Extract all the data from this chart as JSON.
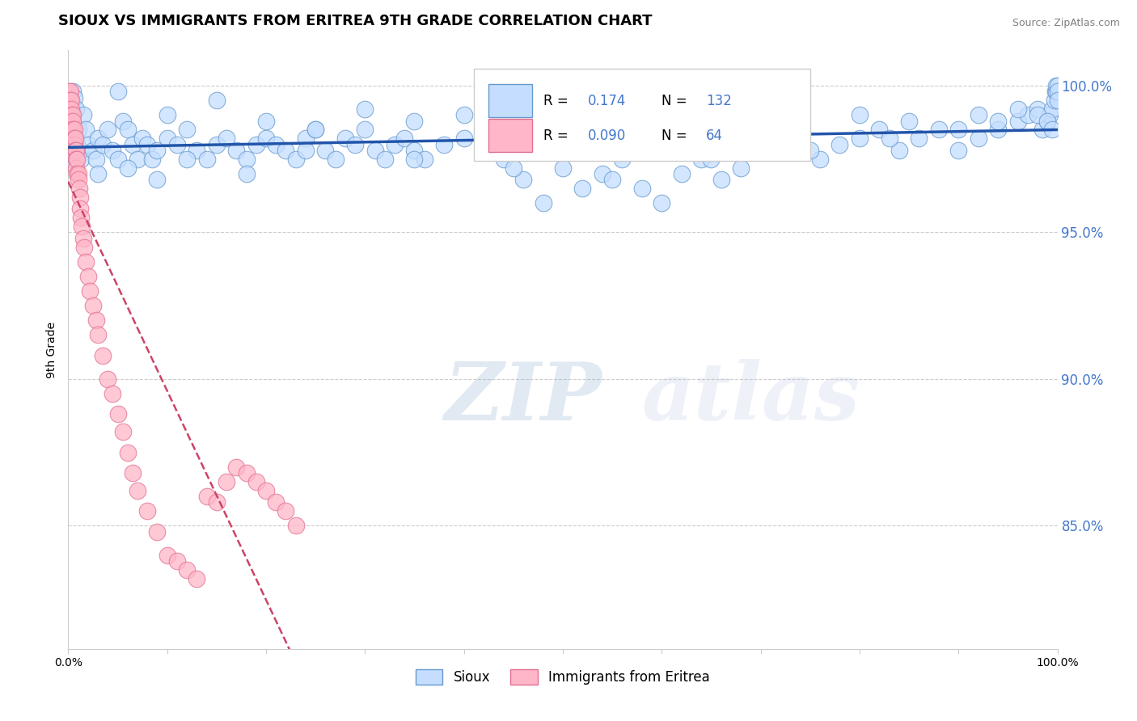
{
  "title": "SIOUX VS IMMIGRANTS FROM ERITREA 9TH GRADE CORRELATION CHART",
  "source": "Source: ZipAtlas.com",
  "ylabel": "9th Grade",
  "legend_label1": "Sioux",
  "legend_label2": "Immigrants from Eritrea",
  "R1": 0.174,
  "N1": 132,
  "R2": 0.09,
  "N2": 64,
  "color_blue_fill": "#C5DEFF",
  "color_blue_edge": "#6699CC",
  "color_pink_fill": "#FFB6C8",
  "color_pink_edge": "#E07090",
  "color_line_blue": "#2255AA",
  "color_line_pink": "#CC4466",
  "watermark_color": "#C8DCF0",
  "grid_color": "#CCCCCC",
  "right_axis_color": "#4477CC",
  "xmin": 0.0,
  "xmax": 1.0,
  "ymin": 0.808,
  "ymax": 1.012,
  "right_yticks": [
    0.85,
    0.9,
    0.95,
    1.0
  ],
  "right_yticklabels": [
    "85.0%",
    "90.0%",
    "95.0%",
    "100.0%"
  ],
  "title_fontsize": 13,
  "axis_label_fontsize": 10,
  "legend_fontsize": 12,
  "watermark_text": "ZIPatlas",
  "blue_x": [
    0.002,
    0.003,
    0.004,
    0.005,
    0.005,
    0.006,
    0.007,
    0.008,
    0.009,
    0.01,
    0.012,
    0.013,
    0.015,
    0.018,
    0.02,
    0.025,
    0.028,
    0.03,
    0.035,
    0.04,
    0.045,
    0.05,
    0.055,
    0.06,
    0.065,
    0.07,
    0.075,
    0.08,
    0.085,
    0.09,
    0.1,
    0.11,
    0.12,
    0.13,
    0.14,
    0.15,
    0.16,
    0.17,
    0.18,
    0.19,
    0.2,
    0.21,
    0.22,
    0.23,
    0.24,
    0.25,
    0.26,
    0.27,
    0.28,
    0.29,
    0.3,
    0.31,
    0.32,
    0.33,
    0.34,
    0.35,
    0.36,
    0.38,
    0.4,
    0.42,
    0.44,
    0.46,
    0.48,
    0.5,
    0.52,
    0.54,
    0.56,
    0.58,
    0.6,
    0.62,
    0.64,
    0.66,
    0.68,
    0.7,
    0.72,
    0.74,
    0.76,
    0.78,
    0.8,
    0.82,
    0.84,
    0.86,
    0.88,
    0.9,
    0.92,
    0.94,
    0.96,
    0.97,
    0.98,
    0.985,
    0.99,
    0.992,
    0.995,
    0.997,
    0.998,
    0.999,
    0.999,
    1.0,
    1.0,
    1.0,
    0.05,
    0.1,
    0.15,
    0.2,
    0.25,
    0.3,
    0.35,
    0.4,
    0.5,
    0.6,
    0.7,
    0.8,
    0.85,
    0.9,
    0.92,
    0.94,
    0.96,
    0.98,
    0.99,
    0.995,
    0.03,
    0.06,
    0.09,
    0.12,
    0.18,
    0.24,
    0.35,
    0.45,
    0.55,
    0.65,
    0.75,
    0.83
  ],
  "blue_y": [
    0.99,
    0.988,
    0.975,
    0.998,
    0.985,
    0.996,
    0.976,
    0.992,
    0.98,
    0.985,
    0.978,
    0.975,
    0.99,
    0.985,
    0.98,
    0.978,
    0.975,
    0.982,
    0.98,
    0.985,
    0.978,
    0.975,
    0.988,
    0.985,
    0.98,
    0.975,
    0.982,
    0.98,
    0.975,
    0.978,
    0.982,
    0.98,
    0.985,
    0.978,
    0.975,
    0.98,
    0.982,
    0.978,
    0.975,
    0.98,
    0.982,
    0.98,
    0.978,
    0.975,
    0.982,
    0.985,
    0.978,
    0.975,
    0.982,
    0.98,
    0.985,
    0.978,
    0.975,
    0.98,
    0.982,
    0.978,
    0.975,
    0.98,
    0.982,
    0.978,
    0.975,
    0.968,
    0.96,
    0.972,
    0.965,
    0.97,
    0.975,
    0.965,
    0.96,
    0.97,
    0.975,
    0.968,
    0.972,
    0.978,
    0.982,
    0.978,
    0.975,
    0.98,
    0.982,
    0.985,
    0.978,
    0.982,
    0.985,
    0.978,
    0.982,
    0.985,
    0.988,
    0.99,
    0.992,
    0.985,
    0.988,
    0.99,
    0.992,
    0.995,
    0.998,
    0.998,
    1.0,
    1.0,
    0.998,
    0.995,
    0.998,
    0.99,
    0.995,
    0.988,
    0.985,
    0.992,
    0.988,
    0.99,
    0.985,
    0.98,
    0.985,
    0.99,
    0.988,
    0.985,
    0.99,
    0.988,
    0.992,
    0.99,
    0.988,
    0.985,
    0.97,
    0.972,
    0.968,
    0.975,
    0.97,
    0.978,
    0.975,
    0.972,
    0.968,
    0.975,
    0.978,
    0.982
  ],
  "pink_x": [
    0.001,
    0.001,
    0.001,
    0.002,
    0.002,
    0.002,
    0.003,
    0.003,
    0.003,
    0.004,
    0.004,
    0.004,
    0.005,
    0.005,
    0.005,
    0.006,
    0.006,
    0.006,
    0.007,
    0.007,
    0.008,
    0.008,
    0.008,
    0.009,
    0.009,
    0.01,
    0.01,
    0.011,
    0.012,
    0.012,
    0.013,
    0.014,
    0.015,
    0.016,
    0.018,
    0.02,
    0.022,
    0.025,
    0.028,
    0.03,
    0.035,
    0.04,
    0.045,
    0.05,
    0.055,
    0.06,
    0.065,
    0.07,
    0.08,
    0.09,
    0.1,
    0.11,
    0.12,
    0.13,
    0.14,
    0.15,
    0.16,
    0.17,
    0.18,
    0.19,
    0.2,
    0.21,
    0.22,
    0.23
  ],
  "pink_y": [
    0.998,
    0.995,
    0.992,
    0.998,
    0.995,
    0.99,
    0.995,
    0.992,
    0.988,
    0.99,
    0.988,
    0.985,
    0.99,
    0.988,
    0.985,
    0.985,
    0.982,
    0.98,
    0.982,
    0.978,
    0.978,
    0.975,
    0.972,
    0.975,
    0.97,
    0.97,
    0.968,
    0.965,
    0.962,
    0.958,
    0.955,
    0.952,
    0.948,
    0.945,
    0.94,
    0.935,
    0.93,
    0.925,
    0.92,
    0.915,
    0.908,
    0.9,
    0.895,
    0.888,
    0.882,
    0.875,
    0.868,
    0.862,
    0.855,
    0.848,
    0.84,
    0.838,
    0.835,
    0.832,
    0.86,
    0.858,
    0.865,
    0.87,
    0.868,
    0.865,
    0.862,
    0.858,
    0.855,
    0.85
  ]
}
